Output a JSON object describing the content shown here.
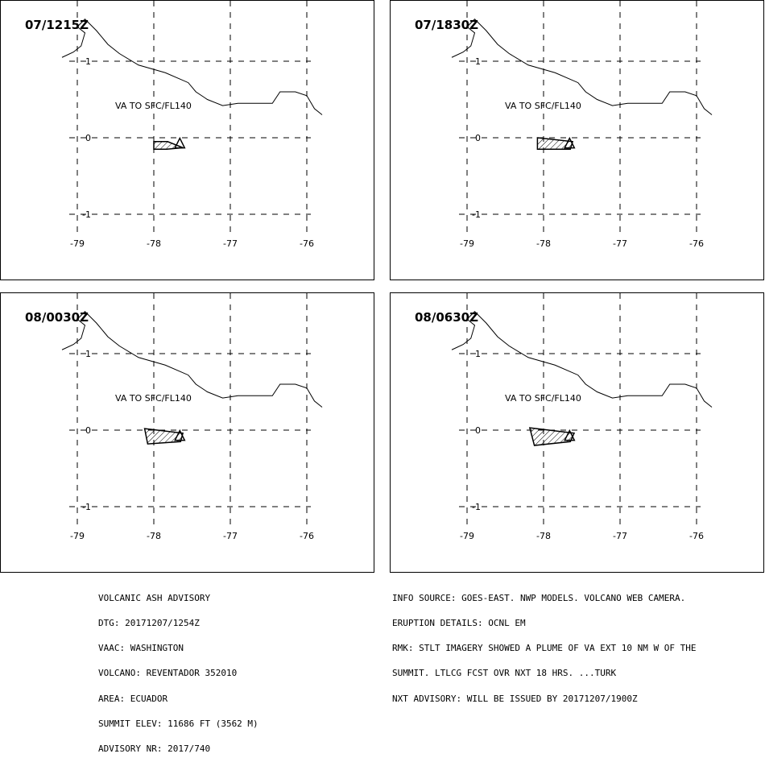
{
  "panels": [
    {
      "time": "07/1215Z",
      "label": "VA TO SFC/FL140",
      "ash_polygon": [
        [
          -78.0,
          -0.05
        ],
        [
          -77.82,
          -0.05
        ],
        [
          -77.62,
          -0.13
        ],
        [
          -77.83,
          -0.15
        ],
        [
          -78.0,
          -0.15
        ]
      ]
    },
    {
      "time": "07/1830Z",
      "label": "VA TO SFC/FL140",
      "ash_polygon": [
        [
          -78.08,
          0.0
        ],
        [
          -77.62,
          -0.05
        ],
        [
          -77.65,
          -0.15
        ],
        [
          -78.08,
          -0.15
        ]
      ]
    },
    {
      "time": "08/0030Z",
      "label": "VA TO SFC/FL140",
      "ash_polygon": [
        [
          -78.12,
          0.02
        ],
        [
          -77.62,
          -0.04
        ],
        [
          -77.65,
          -0.15
        ],
        [
          -78.08,
          -0.18
        ]
      ]
    },
    {
      "time": "08/0630Z",
      "label": "VA TO SFC/FL140",
      "ash_polygon": [
        [
          -78.18,
          0.03
        ],
        [
          -77.6,
          -0.04
        ],
        [
          -77.65,
          -0.15
        ],
        [
          -78.12,
          -0.2
        ]
      ]
    }
  ],
  "axes": {
    "lon_ticks": [
      "-79",
      "-78",
      "-77",
      "-76"
    ],
    "lat_ticks": [
      "1",
      "0",
      "-1"
    ],
    "lon_values": [
      -79,
      -78,
      -77,
      -76
    ],
    "lat_values": [
      1,
      0,
      -1
    ]
  },
  "volcano": {
    "lat": -0.08,
    "lon": -77.66,
    "symbol": "triangle"
  },
  "coastline": [
    [
      -79.2,
      1.05
    ],
    [
      -79.05,
      1.12
    ],
    [
      -78.95,
      1.2
    ],
    [
      -78.9,
      1.37
    ],
    [
      -79.0,
      1.45
    ],
    [
      -78.9,
      1.55
    ],
    [
      -78.75,
      1.4
    ],
    [
      -78.6,
      1.22
    ],
    [
      -78.45,
      1.1
    ],
    [
      -78.2,
      0.95
    ],
    [
      -77.85,
      0.85
    ],
    [
      -77.55,
      0.72
    ],
    [
      -77.45,
      0.6
    ],
    [
      -77.3,
      0.5
    ],
    [
      -77.1,
      0.42
    ],
    [
      -76.9,
      0.45
    ],
    [
      -76.65,
      0.45
    ],
    [
      -76.45,
      0.45
    ],
    [
      -76.35,
      0.6
    ],
    [
      -76.15,
      0.6
    ],
    [
      -76.0,
      0.55
    ],
    [
      -75.9,
      0.38
    ],
    [
      -75.8,
      0.3
    ]
  ],
  "text_left": [
    "VOLCANIC ASH ADVISORY",
    "DTG: 20171207/1254Z",
    "VAAC: WASHINGTON",
    "VOLCANO: REVENTADOR 352010",
    "AREA: ECUADOR",
    "SUMMIT ELEV: 11686 FT (3562 M)",
    "ADVISORY NR: 2017/740"
  ],
  "text_right": [
    "INFO SOURCE: GOES-EAST. NWP MODELS. VOLCANO WEB CAMERA.",
    "ERUPTION DETAILS: OCNL EM",
    "RMK: STLT IMAGERY SHOWED A PLUME OF VA EXT 10 NM W OF THE",
    "SUMMIT. LTLCG FCST OVR NXT 18 HRS. ...TURK",
    "NXT ADVISORY: WILL BE ISSUED BY 20171207/1900Z"
  ]
}
